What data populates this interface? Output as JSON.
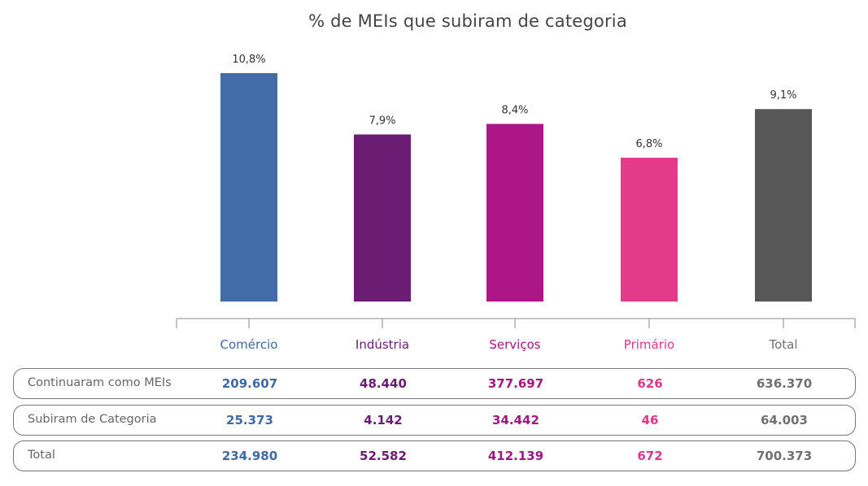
{
  "chart_data": {
    "type": "bar",
    "title": "% de MEIs que subiram de categoria",
    "categories": [
      "Comércio",
      "Indústria",
      "Serviços",
      "Primário",
      "Total"
    ],
    "values": [
      10.8,
      7.9,
      8.4,
      6.8,
      9.1
    ],
    "value_labels": [
      "10,8%",
      "7,9%",
      "8,4%",
      "6,8%",
      "9,1%"
    ],
    "colors": [
      "#416ca8",
      "#6b1d74",
      "#ad1686",
      "#e43a8a",
      "#575757"
    ],
    "label_colors": [
      "#3f68a4",
      "#681c72",
      "#a4157f",
      "#e0368a",
      "#707070"
    ],
    "ylim": [
      0,
      10.8
    ],
    "grid": false,
    "legend": "none"
  },
  "table": {
    "rows": [
      {
        "name": "Continuaram como MEIs",
        "values": [
          "209.607",
          "48.440",
          "377.697",
          "626",
          "636.370"
        ]
      },
      {
        "name": "Subiram de Categoria",
        "values": [
          "25.373",
          "4.142",
          "34.442",
          "46",
          "64.003"
        ]
      },
      {
        "name": "Total",
        "values": [
          "234.980",
          "52.582",
          "412.139",
          "672",
          "700.373"
        ]
      }
    ]
  }
}
